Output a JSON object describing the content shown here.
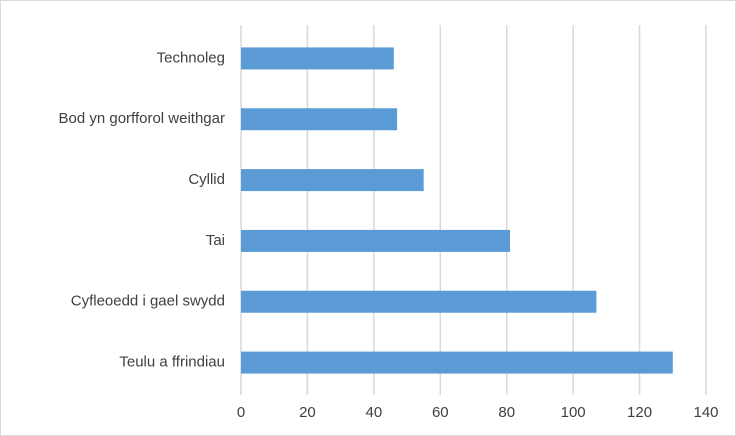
{
  "chart_data": {
    "type": "barh",
    "categories": [
      "Technoleg",
      "Bod yn gorfforol weithgar",
      "Cyllid",
      "Tai",
      "Cyfleoedd i gael swydd",
      "Teulu a ffrindiau"
    ],
    "values": [
      46,
      47,
      55,
      81,
      107,
      130
    ],
    "color": "#5b9bd5",
    "xlim": [
      0,
      140
    ],
    "xticks": [
      0,
      20,
      40,
      60,
      80,
      100,
      120,
      140
    ],
    "grid": true
  }
}
